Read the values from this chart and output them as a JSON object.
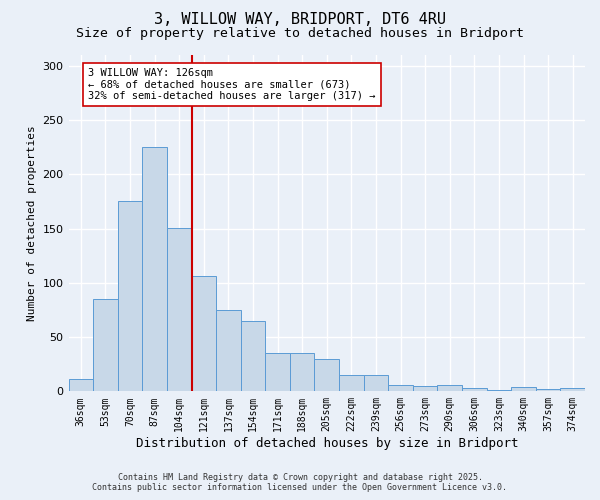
{
  "title": "3, WILLOW WAY, BRIDPORT, DT6 4RU",
  "subtitle": "Size of property relative to detached houses in Bridport",
  "xlabel": "Distribution of detached houses by size in Bridport",
  "ylabel": "Number of detached properties",
  "footer_line1": "Contains HM Land Registry data © Crown copyright and database right 2025.",
  "footer_line2": "Contains public sector information licensed under the Open Government Licence v3.0.",
  "categories": [
    "36sqm",
    "53sqm",
    "70sqm",
    "87sqm",
    "104sqm",
    "121sqm",
    "137sqm",
    "154sqm",
    "171sqm",
    "188sqm",
    "205sqm",
    "222sqm",
    "239sqm",
    "256sqm",
    "273sqm",
    "290sqm",
    "306sqm",
    "323sqm",
    "340sqm",
    "357sqm",
    "374sqm"
  ],
  "values": [
    11,
    85,
    175,
    225,
    151,
    106,
    75,
    65,
    35,
    35,
    30,
    15,
    15,
    6,
    5,
    6,
    3,
    1,
    4,
    2,
    3
  ],
  "bar_color": "#c8d8e8",
  "bar_edge_color": "#5b9bd5",
  "vline_index": 5,
  "vline_color": "#cc0000",
  "annotation_text": "3 WILLOW WAY: 126sqm\n← 68% of detached houses are smaller (673)\n32% of semi-detached houses are larger (317) →",
  "annotation_box_color": "#ffffff",
  "annotation_box_edge": "#cc0000",
  "ylim": [
    0,
    310
  ],
  "yticks": [
    0,
    50,
    100,
    150,
    200,
    250,
    300
  ],
  "background_color": "#eaf0f8",
  "plot_bg_color": "#eaf0f8",
  "grid_color": "#ffffff",
  "title_fontsize": 11,
  "subtitle_fontsize": 9.5,
  "annotation_fontsize": 7.5,
  "ylabel_fontsize": 8,
  "xlabel_fontsize": 9,
  "tick_fontsize": 7
}
